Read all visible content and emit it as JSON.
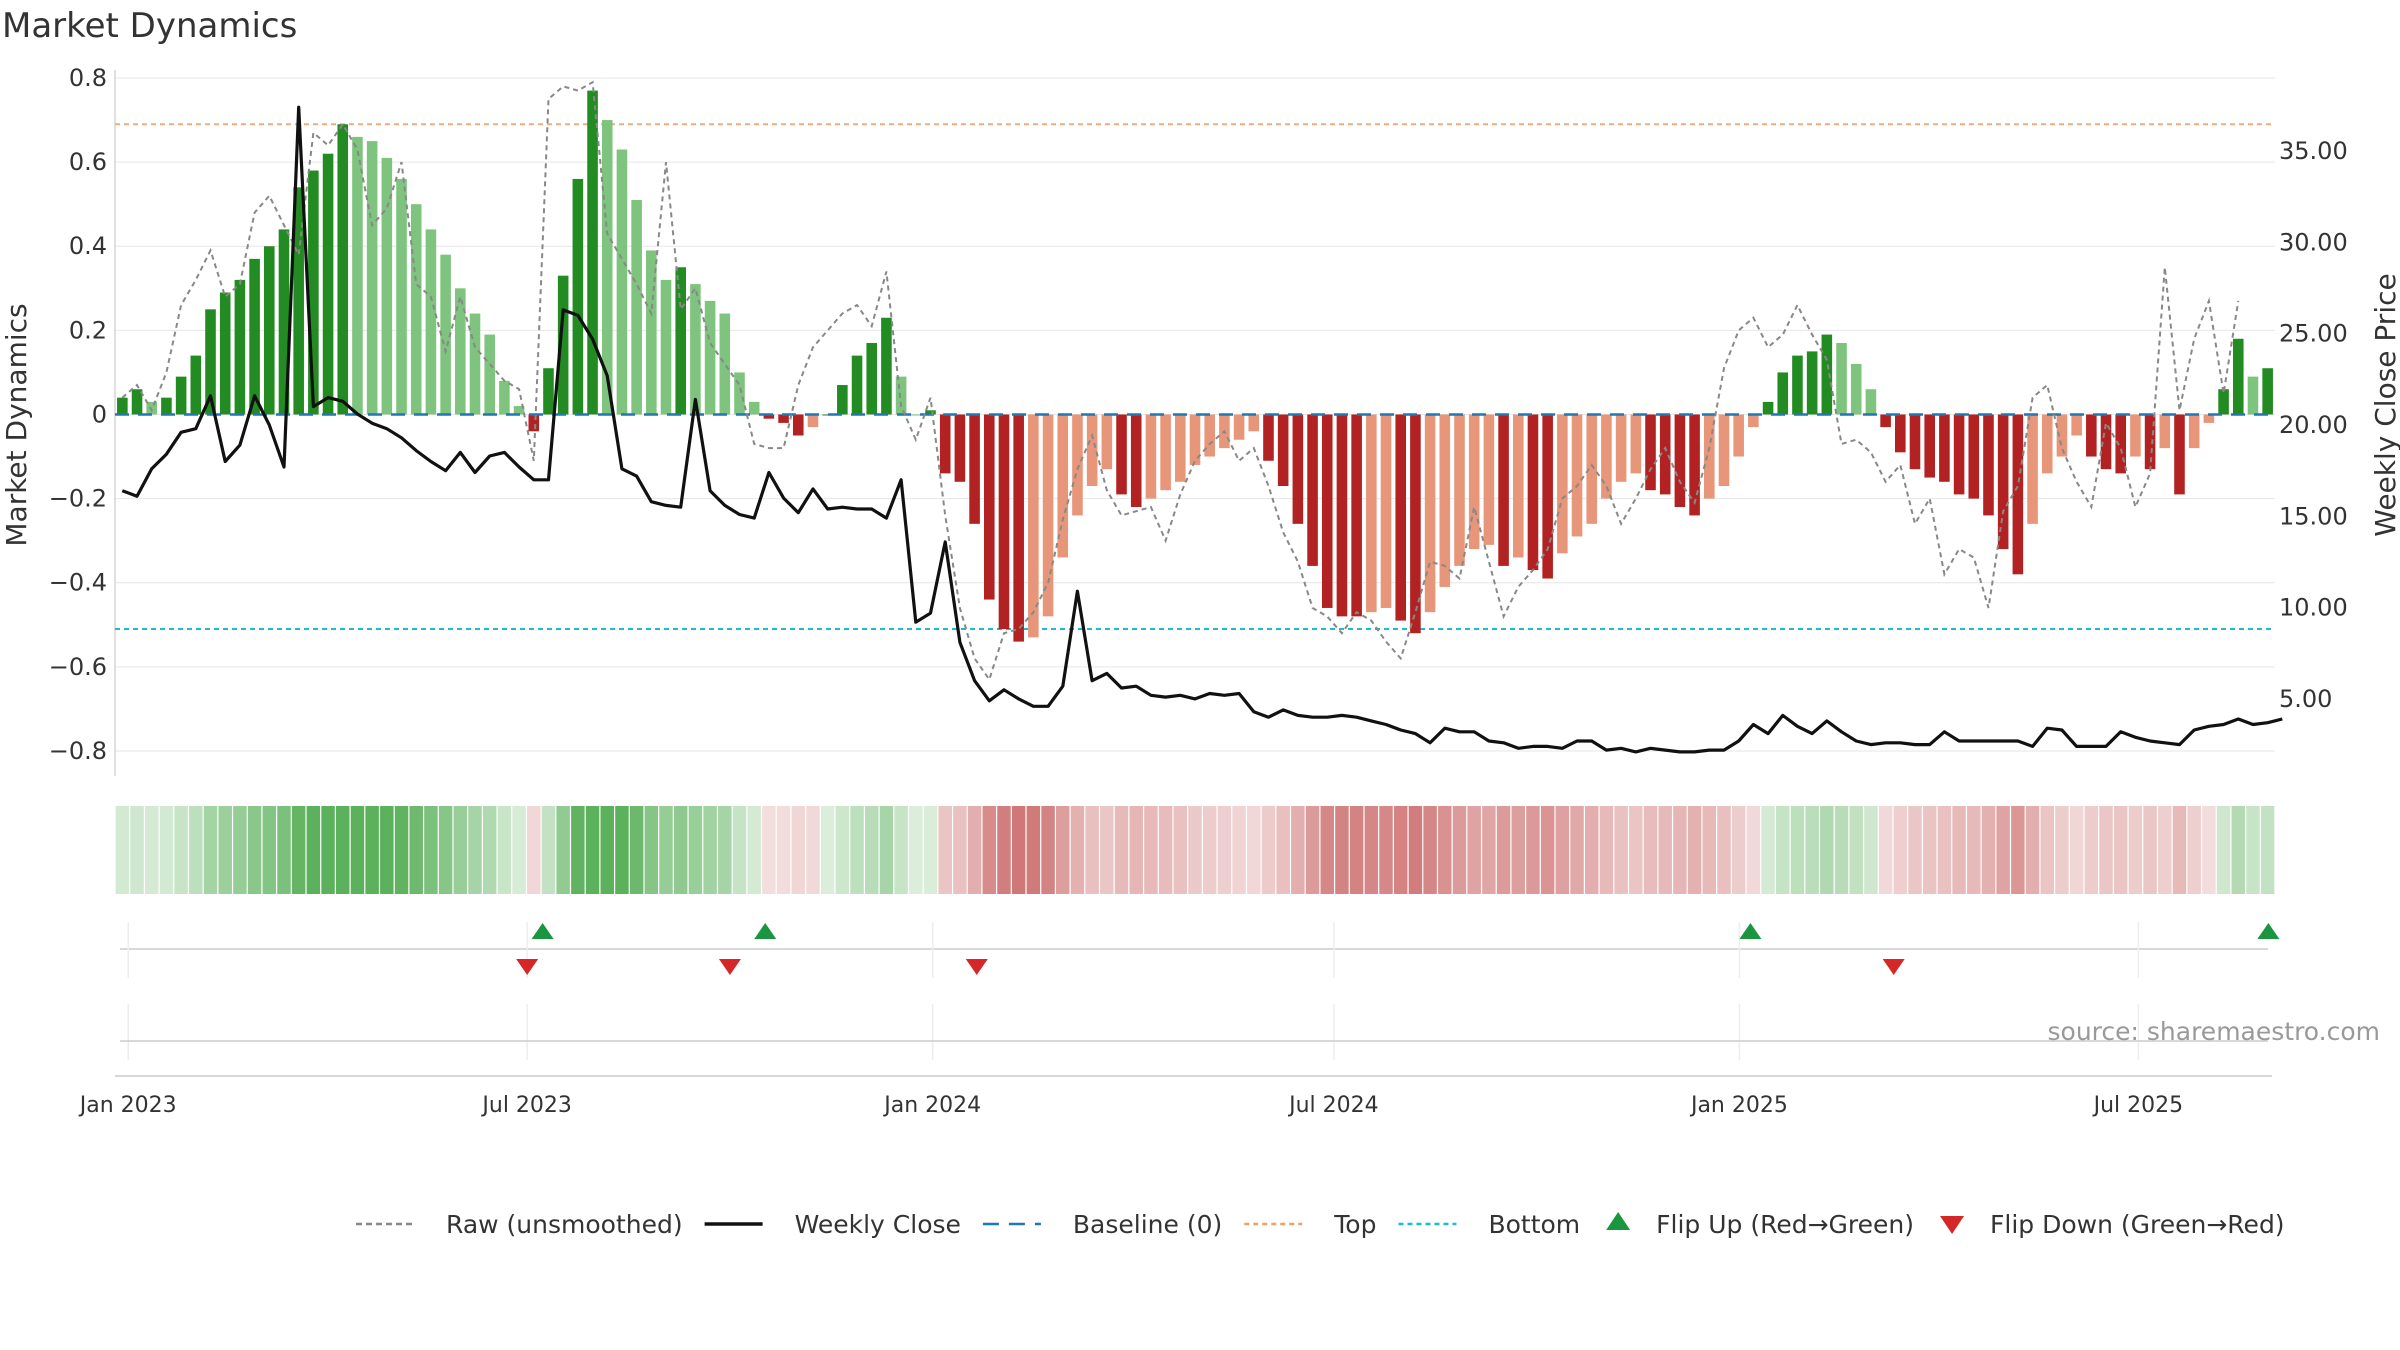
{
  "chart_data": {
    "type": "bar",
    "title": "Market Dynamics",
    "ylabel_left": "Market Dynamics",
    "ylabel_right": "Weekly Close Price",
    "ylim_left": [
      -0.85,
      0.8
    ],
    "ylim_right": [
      1.0,
      39.0
    ],
    "yticks_left": [
      0.8,
      0.6,
      0.4,
      0.2,
      0,
      -0.2,
      -0.4,
      -0.6,
      -0.8
    ],
    "ytick_labels_left": [
      "0.8",
      "0.6",
      "0.4",
      "0.2",
      "0",
      "−0.2",
      "−0.4",
      "−0.6",
      "−0.8"
    ],
    "yticks_right": [
      35,
      30,
      25,
      20,
      15,
      10,
      5
    ],
    "ytick_labels_right": [
      "35.00",
      "30.00",
      "25.00",
      "20.00",
      "15.00",
      "10.00",
      "5.00"
    ],
    "x_start": "2022-12-26",
    "x_end": "2025-09-01",
    "xticks": [
      {
        "date": "2023-01-01",
        "label": "Jan 2023"
      },
      {
        "date": "2023-07-01",
        "label": "Jul 2023"
      },
      {
        "date": "2024-01-01",
        "label": "Jan 2024"
      },
      {
        "date": "2024-07-01",
        "label": "Jul 2024"
      },
      {
        "date": "2025-01-01",
        "label": "Jan 2025"
      },
      {
        "date": "2025-07-01",
        "label": "Jul 2025"
      }
    ],
    "top_level": 0.69,
    "bottom_level": -0.51,
    "baseline": 0,
    "grid": true,
    "legend_position": "bottom",
    "bars_smoothed": [
      0.04,
      0.06,
      0.03,
      0.04,
      0.09,
      0.14,
      0.25,
      0.29,
      0.32,
      0.37,
      0.4,
      0.44,
      0.54,
      0.58,
      0.62,
      0.69,
      0.66,
      0.65,
      0.61,
      0.56,
      0.5,
      0.44,
      0.38,
      0.3,
      0.24,
      0.19,
      0.08,
      0.02,
      -0.04,
      0.11,
      0.33,
      0.56,
      0.77,
      0.7,
      0.63,
      0.51,
      0.39,
      0.32,
      0.35,
      0.31,
      0.27,
      0.24,
      0.1,
      0.03,
      -0.01,
      -0.02,
      -0.05,
      -0.03,
      0,
      0.07,
      0.14,
      0.17,
      0.23,
      0.09,
      0,
      0.01,
      -0.14,
      -0.16,
      -0.26,
      -0.44,
      -0.51,
      -0.54,
      -0.53,
      -0.48,
      -0.34,
      -0.24,
      -0.17,
      -0.13,
      -0.19,
      -0.22,
      -0.2,
      -0.18,
      -0.16,
      -0.12,
      -0.1,
      -0.08,
      -0.06,
      -0.04,
      -0.11,
      -0.17,
      -0.26,
      -0.36,
      -0.46,
      -0.48,
      -0.48,
      -0.47,
      -0.46,
      -0.49,
      -0.52,
      -0.47,
      -0.41,
      -0.36,
      -0.32,
      -0.31,
      -0.36,
      -0.34,
      -0.37,
      -0.39,
      -0.33,
      -0.29,
      -0.26,
      -0.2,
      -0.16,
      -0.14,
      -0.18,
      -0.19,
      -0.22,
      -0.24,
      -0.2,
      -0.17,
      -0.1,
      -0.03,
      0.03,
      0.1,
      0.14,
      0.15,
      0.19,
      0.17,
      0.12,
      0.06,
      -0.03,
      -0.09,
      -0.13,
      -0.15,
      -0.16,
      -0.19,
      -0.2,
      -0.24,
      -0.32,
      -0.38,
      -0.26,
      -0.14,
      -0.1,
      -0.05,
      -0.1,
      -0.13,
      -0.14,
      -0.1,
      -0.13,
      -0.08,
      -0.19,
      -0.08,
      -0.02,
      0.06,
      0.18,
      0.09,
      0.11
    ],
    "raw_unsmoothed": [
      0.04,
      0.07,
      0.01,
      0.1,
      0.26,
      0.32,
      0.39,
      0.28,
      0.31,
      0.48,
      0.52,
      0.45,
      0.38,
      0.67,
      0.64,
      0.69,
      0.63,
      0.45,
      0.49,
      0.6,
      0.31,
      0.28,
      0.15,
      0.28,
      0.16,
      0.12,
      0.08,
      0.06,
      -0.11,
      0.75,
      0.78,
      0.77,
      0.79,
      0.43,
      0.37,
      0.31,
      0.24,
      0.6,
      0.25,
      0.3,
      0.17,
      0.12,
      0.07,
      -0.07,
      -0.08,
      -0.08,
      0.07,
      0.16,
      0.2,
      0.24,
      0.26,
      0.21,
      0.34,
      0.02,
      -0.06,
      0.04,
      -0.24,
      -0.46,
      -0.58,
      -0.63,
      -0.52,
      -0.51,
      -0.47,
      -0.4,
      -0.25,
      -0.13,
      -0.05,
      -0.18,
      -0.24,
      -0.23,
      -0.22,
      -0.3,
      -0.19,
      -0.11,
      -0.07,
      -0.04,
      -0.11,
      -0.08,
      -0.17,
      -0.28,
      -0.35,
      -0.46,
      -0.48,
      -0.52,
      -0.47,
      -0.49,
      -0.54,
      -0.58,
      -0.47,
      -0.35,
      -0.36,
      -0.39,
      -0.22,
      -0.35,
      -0.48,
      -0.41,
      -0.37,
      -0.32,
      -0.2,
      -0.17,
      -0.12,
      -0.17,
      -0.26,
      -0.2,
      -0.13,
      -0.08,
      -0.16,
      -0.21,
      -0.08,
      0.11,
      0.2,
      0.23,
      0.16,
      0.19,
      0.26,
      0.19,
      0.13,
      -0.07,
      -0.06,
      -0.09,
      -0.16,
      -0.12,
      -0.26,
      -0.2,
      -0.38,
      -0.32,
      -0.34,
      -0.46,
      -0.23,
      -0.17,
      0.04,
      0.07,
      -0.08,
      -0.16,
      -0.22,
      -0.02,
      -0.08,
      -0.22,
      -0.14,
      0.35,
      0.01,
      0.18,
      0.27,
      0.05,
      0.27
    ],
    "weekly_close": [
      16.4,
      16.1,
      17.6,
      18.4,
      19.6,
      19.8,
      21.6,
      18.0,
      18.9,
      21.6,
      20.0,
      17.7,
      37.4,
      21.0,
      21.5,
      21.3,
      20.6,
      20.1,
      19.8,
      19.3,
      18.6,
      18.0,
      17.5,
      18.5,
      17.4,
      18.3,
      18.5,
      17.7,
      17.0,
      17.0,
      26.3,
      26.0,
      24.7,
      22.7,
      17.6,
      17.2,
      15.8,
      15.6,
      15.5,
      21.4,
      16.4,
      15.6,
      15.1,
      14.9,
      17.4,
      16.0,
      15.2,
      16.5,
      15.4,
      15.5,
      15.4,
      15.4,
      14.9,
      17.0,
      9.2,
      9.7,
      13.6,
      8.1,
      6.0,
      4.9,
      5.5,
      5.0,
      4.6,
      4.6,
      5.7,
      10.9,
      6.0,
      6.4,
      5.6,
      5.7,
      5.2,
      5.1,
      5.2,
      5.0,
      5.3,
      5.2,
      5.3,
      4.3,
      4.0,
      4.4,
      4.1,
      4.0,
      4.0,
      4.1,
      4.0,
      3.8,
      3.6,
      3.3,
      3.1,
      2.6,
      3.4,
      3.2,
      3.2,
      2.7,
      2.6,
      2.3,
      2.4,
      2.4,
      2.3,
      2.7,
      2.7,
      2.2,
      2.3,
      2.1,
      2.3,
      2.2,
      2.1,
      2.1,
      2.2,
      2.2,
      2.7,
      3.6,
      3.1,
      4.1,
      3.5,
      3.1,
      3.8,
      3.2,
      2.7,
      2.5,
      2.6,
      2.6,
      2.5,
      2.5,
      3.2,
      2.7,
      2.7,
      2.7,
      2.7,
      2.7,
      2.4,
      3.4,
      3.3,
      2.4,
      2.4,
      2.4,
      3.2,
      2.9,
      2.7,
      2.6,
      2.5,
      3.3,
      3.5,
      3.6,
      3.9,
      3.6,
      3.7,
      3.9
    ],
    "flips_up": [
      "2023-07-08",
      "2023-10-17",
      "2025-01-06",
      "2025-08-29"
    ],
    "flips_down": [
      "2023-07-01",
      "2023-10-01",
      "2024-01-21",
      "2025-03-12"
    ],
    "legend": [
      {
        "key": "raw",
        "label": "Raw (unsmoothed)",
        "color": "#888888",
        "style": "dashed"
      },
      {
        "key": "close",
        "label": "Weekly Close",
        "color": "#111111",
        "style": "solid"
      },
      {
        "key": "baseline",
        "label": "Baseline (0)",
        "color": "#1f77b4",
        "style": "dashed"
      },
      {
        "key": "top",
        "label": "Top",
        "color": "#f0a060",
        "style": "dotted"
      },
      {
        "key": "bottom",
        "label": "Bottom",
        "color": "#17becf",
        "style": "dotted"
      },
      {
        "key": "flip_up",
        "label": "Flip Up (Red→Green)",
        "color": "#1a9641",
        "style": "triangle-up"
      },
      {
        "key": "flip_down",
        "label": "Flip Down (Green→Red)",
        "color": "#d62728",
        "style": "triangle-down"
      }
    ],
    "source": "source: sharemaestro.com",
    "colors": {
      "green_strong": "#228b22",
      "green_light": "#7ec47e",
      "red_strong": "#b22222",
      "red_light": "#e8967a",
      "ribbon_green": "#4aa84a",
      "ribbon_red": "#c86060"
    }
  }
}
